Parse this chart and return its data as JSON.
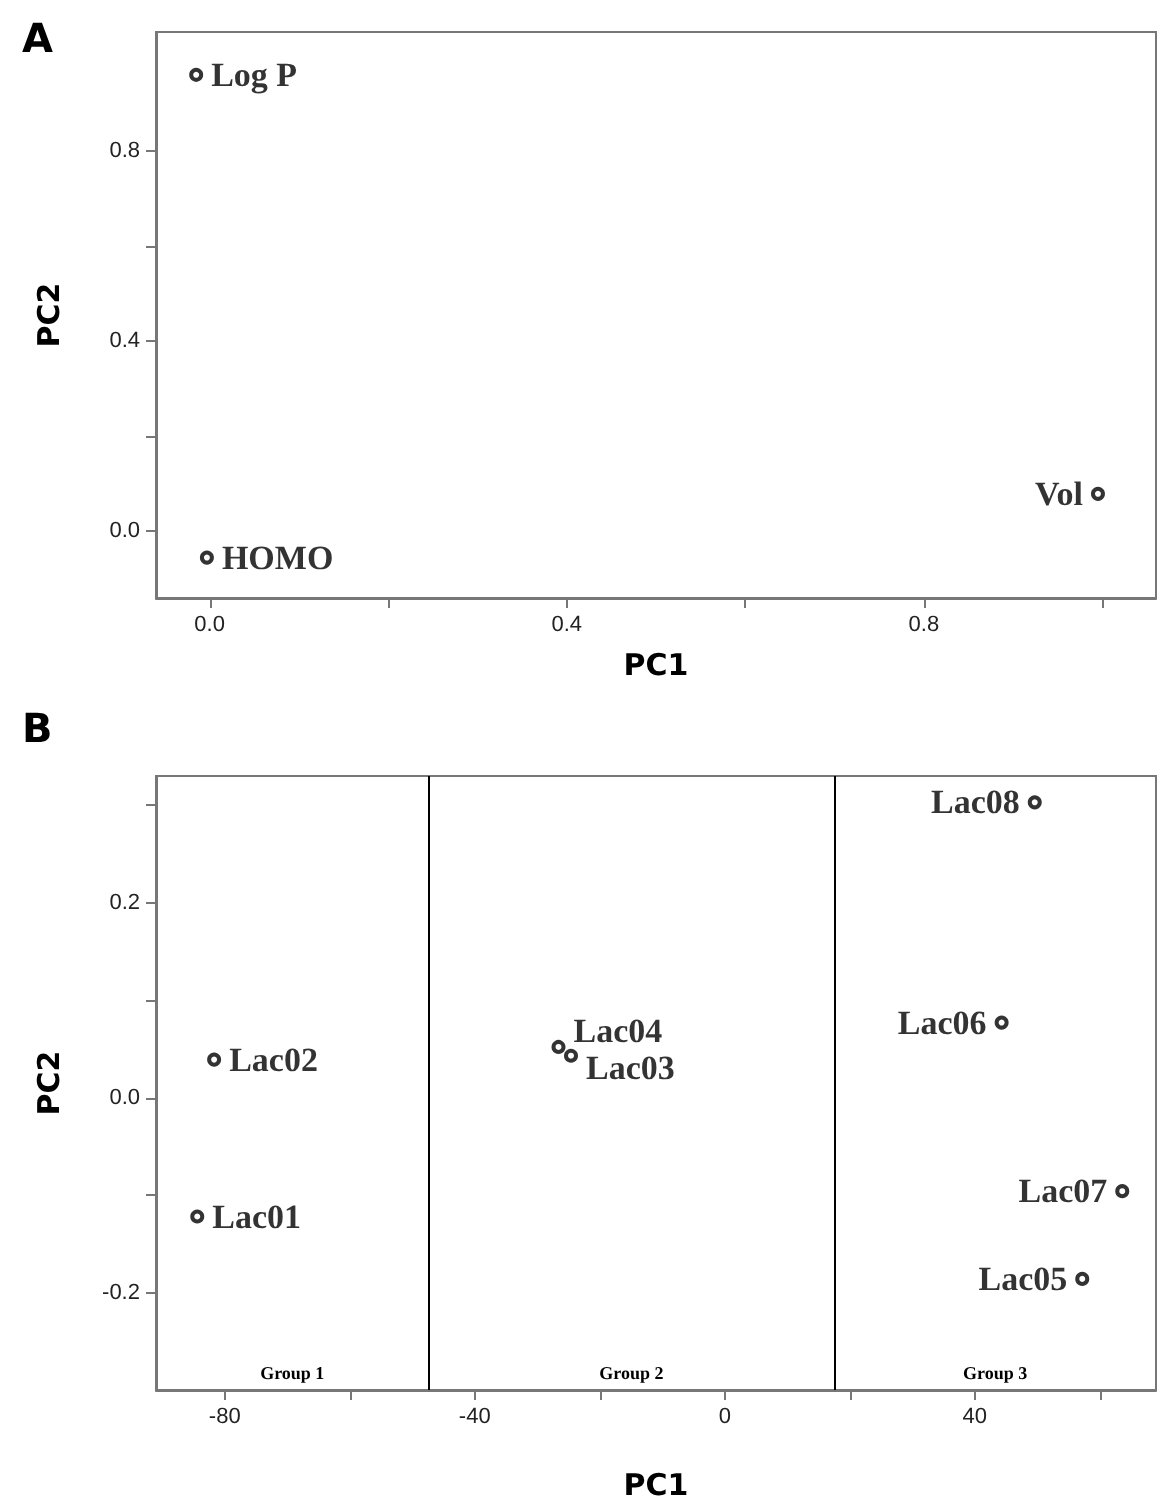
{
  "chart_data": [
    {
      "type": "scatter",
      "title": "A",
      "xlabel": "PC1",
      "ylabel": "PC2",
      "xlim": [
        -0.06,
        1.06
      ],
      "ylim": [
        -0.14,
        1.05
      ],
      "xticks": [
        {
          "value": 0,
          "label": "0.0"
        },
        {
          "value": 0.2,
          "label": null
        },
        0.4,
        {
          "value": 0.6,
          "label": null
        },
        0.8,
        {
          "value": 1.0,
          "label": null
        }
      ],
      "yticks": [
        {
          "value": 0,
          "label": "0.0"
        },
        {
          "value": 0.2,
          "label": null
        },
        0.4,
        {
          "value": 0.6,
          "label": null
        },
        0.8
      ],
      "grid": false,
      "legend": false,
      "marker": "circle",
      "series": [
        {
          "name": "Log P",
          "color": "#000000",
          "x": [
            -0.015
          ],
          "values": [
            0.96
          ]
        },
        {
          "name": "HOMO",
          "color": "#000000",
          "x": [
            -0.003
          ],
          "values": [
            -0.055
          ]
        },
        {
          "name": "Vol",
          "color": "#000000",
          "x": [
            0.995
          ],
          "values": [
            0.079
          ]
        }
      ]
    },
    {
      "type": "scatter",
      "title": "B",
      "xlabel": "PC1",
      "ylabel": "PC2",
      "xlim": [
        -91,
        69
      ],
      "ylim": [
        -0.3,
        0.33
      ],
      "xticks": [
        -80,
        {
          "value": -60,
          "label": null
        },
        -40,
        {
          "value": -20,
          "label": null
        },
        0,
        {
          "value": 20,
          "label": null
        },
        40,
        {
          "value": 60,
          "label": null
        }
      ],
      "yticks": [
        -0.2,
        {
          "value": -0.1,
          "label": null
        },
        {
          "value": 0,
          "label": "0.0"
        },
        {
          "value": 0.1,
          "label": null
        },
        0.2,
        {
          "value": 0.3,
          "label": null
        }
      ],
      "grid": false,
      "legend": false,
      "marker": "circle",
      "ref_lines": [
        {
          "axis": "x",
          "value": -47.4,
          "color": "#000000"
        },
        {
          "axis": "x",
          "value": 17.5,
          "color": "#000000"
        }
      ],
      "annotations": [
        "Group 1",
        "Group 2",
        "Group 3"
      ],
      "series": [
        {
          "name": "Lac01",
          "color": "#000000",
          "x": [
            -84.4
          ],
          "values": [
            -0.122
          ]
        },
        {
          "name": "Lac02",
          "color": "#000000",
          "x": [
            -81.7
          ],
          "values": [
            0.039
          ]
        },
        {
          "name": "Lac03",
          "color": "#000000",
          "x": [
            -24.6
          ],
          "values": [
            0.043
          ]
        },
        {
          "name": "Lac04",
          "color": "#000000",
          "x": [
            -26.6
          ],
          "values": [
            0.052
          ]
        },
        {
          "name": "Lac05",
          "color": "#000000",
          "x": [
            57.2
          ],
          "values": [
            -0.186
          ]
        },
        {
          "name": "Lac06",
          "color": "#000000",
          "x": [
            44.3
          ],
          "values": [
            0.077
          ]
        },
        {
          "name": "Lac07",
          "color": "#000000",
          "x": [
            63.6
          ],
          "values": [
            -0.096
          ]
        },
        {
          "name": "Lac08",
          "color": "#000000",
          "x": [
            49.6
          ],
          "values": [
            0.303
          ]
        }
      ]
    }
  ]
}
